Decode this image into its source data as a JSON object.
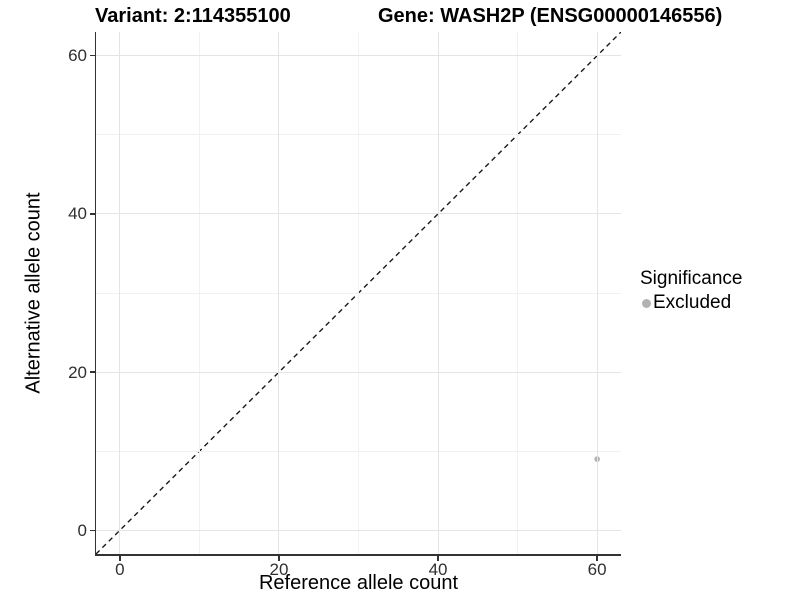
{
  "chart_data": {
    "type": "scatter",
    "titles": {
      "left": "Variant: 2:114355100",
      "right": "Gene: WASH2P (ENSG00000146556)"
    },
    "xlabel": "Reference allele count",
    "ylabel": "Alternative allele count",
    "xlim": [
      -3,
      63
    ],
    "ylim": [
      -3,
      63
    ],
    "x_major_ticks": [
      0,
      20,
      40,
      60
    ],
    "y_major_ticks": [
      0,
      20,
      40,
      60
    ],
    "x_minor_gridlines": [
      10,
      30,
      50
    ],
    "y_minor_gridlines": [
      10,
      30,
      50
    ],
    "grid": true,
    "identity_line": {
      "style": "dashed",
      "slope": 1,
      "intercept": 0
    },
    "series": [
      {
        "name": "Excluded",
        "color": "#b3b3b3",
        "points": [
          {
            "x": 60,
            "y": 9
          }
        ]
      }
    ],
    "legend": {
      "position": "right",
      "title": "Significance",
      "entries": [
        {
          "label": "Excluded",
          "color": "#b3b3b3"
        }
      ]
    }
  },
  "colors": {
    "background": "#ffffff",
    "grid_major": "#e4e4e4",
    "grid_minor": "#f1f1f1",
    "axis": "#333333",
    "tick_label": "#303030",
    "title": "#000000",
    "abline": "#1a1a1a"
  }
}
